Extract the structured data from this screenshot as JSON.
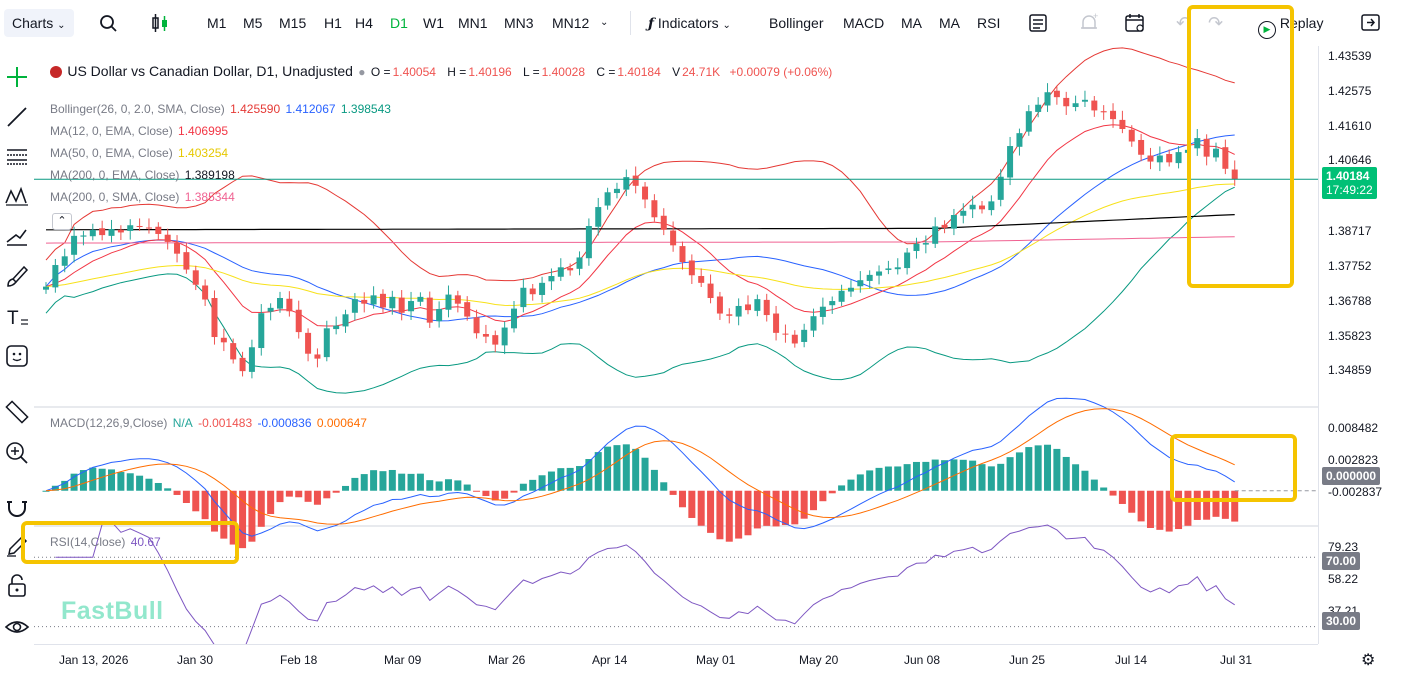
{
  "toolbar": {
    "charts_label": "Charts",
    "timeframes": [
      "M1",
      "M5",
      "M15",
      "H1",
      "H4",
      "D1",
      "W1",
      "MN1",
      "MN3",
      "MN12"
    ],
    "active_timeframe": "D1",
    "indicators_label": "Indicators",
    "indicator_shortcuts": [
      "Bollinger",
      "MACD",
      "MA",
      "MA",
      "RSI"
    ],
    "replay_label": "Replay"
  },
  "left_tools": [
    "crosshair-icon",
    "trendline-icon",
    "fib-icon",
    "pattern-icon",
    "projection-icon",
    "brush-icon",
    "text-icon",
    "emoji-icon",
    "ruler-icon",
    "zoom-in-icon",
    "magnet-icon",
    "pencil-lock-icon",
    "lock-icon",
    "eye-icon"
  ],
  "legend": {
    "symbol": "US Dollar vs Canadian Dollar, D1, Unadjusted",
    "open_label": "O =",
    "open": "1.40054",
    "high_label": "H =",
    "high": "1.40196",
    "low_label": "L =",
    "low": "1.40028",
    "close_label": "C =",
    "close": "1.40184",
    "volume_label": "V",
    "volume": "24.71K",
    "change": "+0.00079 (+0.06%)"
  },
  "indicators": {
    "bollinger": {
      "label": "Bollinger(26, 0, 2.0, SMA, Close)",
      "upper": "1.425590",
      "middle": "1.412067",
      "lower": "1.398543"
    },
    "ma12": {
      "label": "MA(12, 0, EMA, Close)",
      "value": "1.406995"
    },
    "ma50": {
      "label": "MA(50, 0, EMA, Close)",
      "value": "1.403254"
    },
    "ma200e": {
      "label": "MA(200, 0, EMA, Close)",
      "value": "1.389198"
    },
    "ma200s": {
      "label": "MA(200, 0, SMA, Close)",
      "value": "1.385344"
    },
    "macd": {
      "label": "MACD(12,26,9,Close)",
      "na": "N/A",
      "v1": "-0.001483",
      "v2": "-0.000836",
      "v3": "0.000647"
    },
    "rsi": {
      "label": "RSI(14,Close)",
      "value": "40.67"
    }
  },
  "price_axis": [
    "1.43539",
    "1.42575",
    "1.41610",
    "1.40646",
    "1.38717",
    "1.37752",
    "1.36788",
    "1.35823",
    "1.34859"
  ],
  "last_price": "1.40184",
  "countdown": "17:49:22",
  "macd_axis": [
    "0.008482",
    "0.002823",
    "-0.002837"
  ],
  "macd_zero_tag": "0.000000",
  "rsi_axis": [
    "79.23",
    "58.22",
    "37.21"
  ],
  "rsi_tags": [
    "70.00",
    "30.00"
  ],
  "time_axis": [
    "Jan 13, 2026",
    "Jan 30",
    "Feb 18",
    "Mar 09",
    "Mar 26",
    "Apr 14",
    "May 01",
    "May 20",
    "Jun 08",
    "Jun 25",
    "Jul 14",
    "Jul 31"
  ],
  "watermark": "FastBull",
  "colors": {
    "up": "#26a69a",
    "down": "#ef5350",
    "accent": "#00b33c",
    "bb_upper": "#e53935",
    "bb_mid": "#2962ff",
    "bb_lower": "#089981",
    "ma12": "#f23645",
    "ma50": "#f7e11a",
    "ma200e": "#000000",
    "ma200s": "#f06292",
    "highlight": "#f5c400"
  },
  "chart_data": {
    "type": "candlestick",
    "price_series_closes": [
      1.3735,
      1.3792,
      1.3815,
      1.3869,
      1.387,
      1.3885,
      1.3871,
      1.3887,
      1.3878,
      1.3897,
      1.3893,
      1.3889,
      1.3874,
      1.3853,
      1.3822,
      1.378,
      1.374,
      1.3701,
      1.3602,
      1.3588,
      1.3543,
      1.3512,
      1.3575,
      1.3665,
      1.3679,
      1.3705,
      1.367,
      1.3615,
      1.3558,
      1.3545,
      1.3625,
      1.3632,
      1.3662,
      1.3702,
      1.369,
      1.3712,
      1.368,
      1.3708,
      1.3666,
      1.3697,
      1.3708,
      1.364,
      1.3676,
      1.3714,
      1.369,
      1.3656,
      1.3612,
      1.3603,
      1.3582,
      1.3627,
      1.3677,
      1.3732,
      1.3715,
      1.3745,
      1.3763,
      1.3786,
      1.3778,
      1.3812,
      1.3895,
      1.3945,
      1.3984,
      1.3993,
      1.4024,
      1.4001,
      1.3965,
      1.3918,
      1.3885,
      1.3844,
      1.38,
      1.3765,
      1.3745,
      1.3705,
      1.3664,
      1.3658,
      1.3684,
      1.3673,
      1.3702,
      1.366,
      1.3613,
      1.361,
      1.3585,
      1.3621,
      1.3657,
      1.3682,
      1.3697,
      1.3724,
      1.3732,
      1.3752,
      1.3766,
      1.3775,
      1.3783,
      1.3786,
      1.3825,
      1.3848,
      1.385,
      1.3894,
      1.389,
      1.3924,
      1.3935,
      1.3951,
      1.3939,
      1.396,
      1.4025,
      1.4106,
      1.414,
      1.4198,
      1.4215,
      1.4248,
      1.4235,
      1.4211,
      1.4219,
      1.4228,
      1.42,
      1.4195,
      1.4177,
      1.4151,
      1.4118,
      1.4083,
      1.4065,
      1.4081,
      1.4063,
      1.409,
      1.4096,
      1.4127,
      1.4078,
      1.4099,
      1.4046,
      1.4018
    ],
    "ylim": [
      1.342,
      1.437
    ],
    "macd_ylim": [
      -0.0045,
      0.011
    ],
    "rsi_ylim": [
      20,
      88
    ]
  }
}
